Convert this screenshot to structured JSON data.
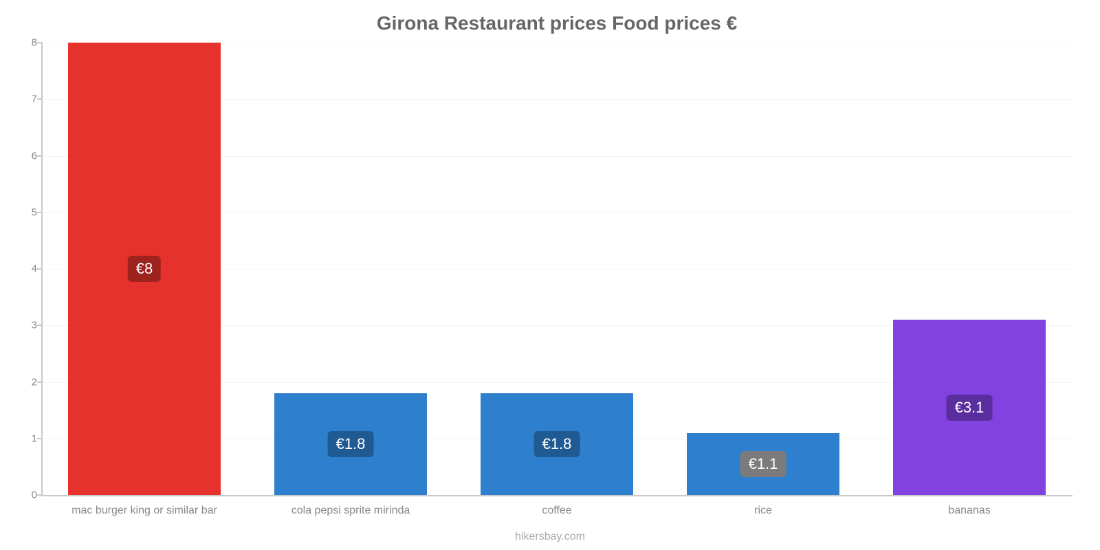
{
  "chart": {
    "type": "bar",
    "title": "Girona Restaurant prices Food prices €",
    "title_fontsize": 28,
    "title_color": "#666666",
    "attribution": "hikersbay.com",
    "attribution_color": "#aaaaaa",
    "background_color": "#ffffff",
    "grid_color": "#f4f4f4",
    "axis_color": "#c9c9c9",
    "tick_label_color": "#888888",
    "tick_label_fontsize": 15,
    "cat_label_color": "#888888",
    "cat_label_fontsize": 16,
    "value_label_color": "#ffffff",
    "value_label_fontsize": 22,
    "ylim": [
      0,
      8
    ],
    "ytick_step": 1,
    "bar_width_pct": 74,
    "categories": [
      "mac burger king or similar bar",
      "cola pepsi sprite mirinda",
      "coffee",
      "rice",
      "bananas"
    ],
    "values": [
      8,
      1.8,
      1.8,
      1.1,
      3.1
    ],
    "value_labels": [
      "€8",
      "€1.8",
      "€1.8",
      "€1.1",
      "€3.1"
    ],
    "bar_colors": [
      "#e5322c",
      "#2e7fce",
      "#2e7fce",
      "#2e7fce",
      "#8142e0"
    ],
    "badge_colors": [
      "#9e221e",
      "#205a92",
      "#205a92",
      "#7b7b7b",
      "#5a2e9e"
    ]
  }
}
